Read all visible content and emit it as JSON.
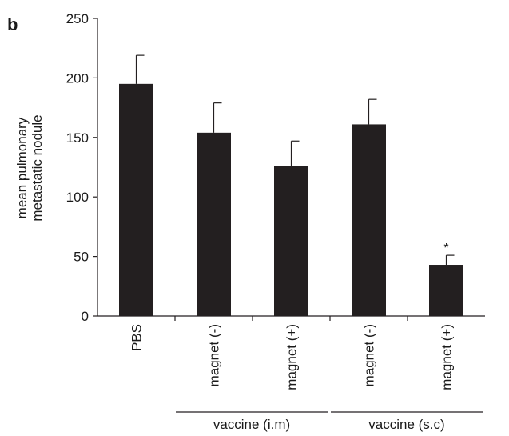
{
  "panel_label": "b",
  "chart_data": {
    "type": "bar",
    "ylabel_lines": [
      "mean pulmonary",
      "metastatic nodule"
    ],
    "xlabel": "",
    "ylim": [
      0,
      250
    ],
    "yticks": [
      0,
      50,
      100,
      150,
      200,
      250
    ],
    "categories": [
      "PBS",
      "magnet (-)",
      "magnet (+)",
      "magnet (-)",
      "magnet (+)"
    ],
    "values": [
      195,
      154,
      126,
      161,
      43
    ],
    "error_upper": [
      24,
      25,
      21,
      21,
      8
    ],
    "annotations": [
      {
        "category_index": 4,
        "text": "*"
      }
    ],
    "groups": [
      {
        "label": "vaccine (i.m)",
        "category_indices": [
          1,
          2
        ]
      },
      {
        "label": "vaccine (s.c)",
        "category_indices": [
          3,
          4
        ]
      }
    ],
    "bar_color": "#231f20",
    "grid": false,
    "legend": "none"
  }
}
